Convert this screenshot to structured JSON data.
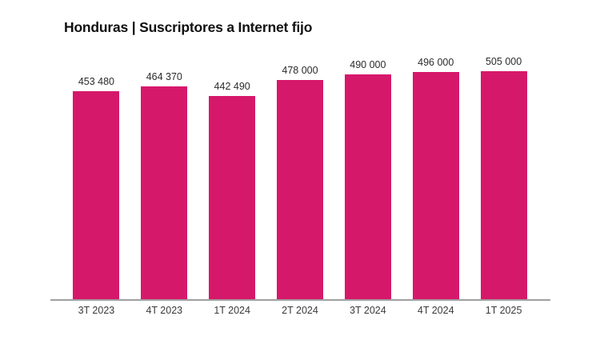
{
  "title": "Honduras | Suscriptores a Internet fijo",
  "colors": {
    "background": "#ffffff",
    "bar": "#d6186b",
    "axis_line": "#a0a0a0",
    "value_label": "#2b2b2b",
    "tick_label": "#3a3a3a",
    "title": "#111111"
  },
  "chart_data": {
    "type": "bar",
    "title": "Honduras | Suscriptores a Internet fijo",
    "categories": [
      "3T 2023",
      "4T 2023",
      "1T 2024",
      "2T 2024",
      "3T 2024",
      "4T 2024",
      "1T 2025"
    ],
    "values": [
      453480,
      464370,
      442490,
      478000,
      490000,
      496000,
      505000
    ],
    "value_labels": [
      "453 480",
      "464 370",
      "442 490",
      "478 000",
      "490 000",
      "496 000",
      "505 000"
    ],
    "xlabel": "",
    "ylabel": "",
    "ylim": [
      0,
      530000
    ],
    "grid": false,
    "legend": false,
    "y_axis_visible": false
  }
}
